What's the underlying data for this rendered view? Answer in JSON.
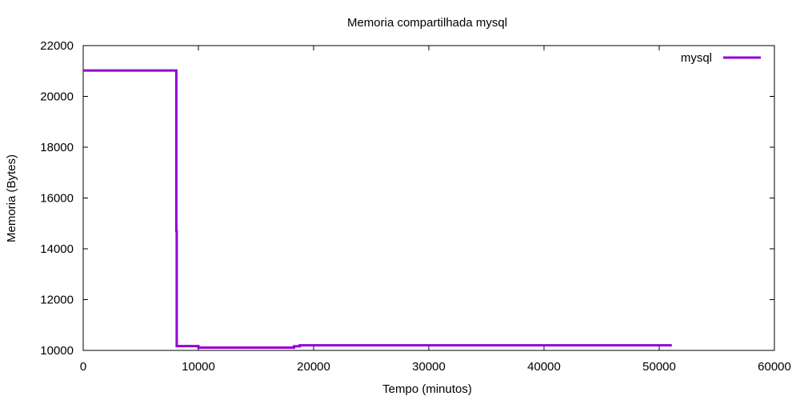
{
  "chart_data": {
    "type": "line",
    "title": "Memoria compartilhada mysql",
    "xlabel": "Tempo (minutos)",
    "ylabel": "Memoria (Bytes)",
    "xlim": [
      0,
      60000
    ],
    "ylim": [
      10000,
      22000
    ],
    "xticks": [
      0,
      10000,
      20000,
      30000,
      40000,
      50000,
      60000
    ],
    "yticks": [
      10000,
      12000,
      14000,
      16000,
      18000,
      20000,
      22000
    ],
    "grid": false,
    "legend": {
      "position": "top-right"
    },
    "series": [
      {
        "name": "mysql",
        "color": "#9400d3",
        "step": true,
        "points": [
          [
            0,
            21020
          ],
          [
            8080,
            21020
          ],
          [
            8080,
            14700
          ],
          [
            8120,
            14700
          ],
          [
            8120,
            10170
          ],
          [
            10000,
            10170
          ],
          [
            10000,
            10110
          ],
          [
            18300,
            10110
          ],
          [
            18300,
            10160
          ],
          [
            18800,
            10160
          ],
          [
            18800,
            10200
          ],
          [
            51100,
            10200
          ]
        ]
      }
    ]
  }
}
